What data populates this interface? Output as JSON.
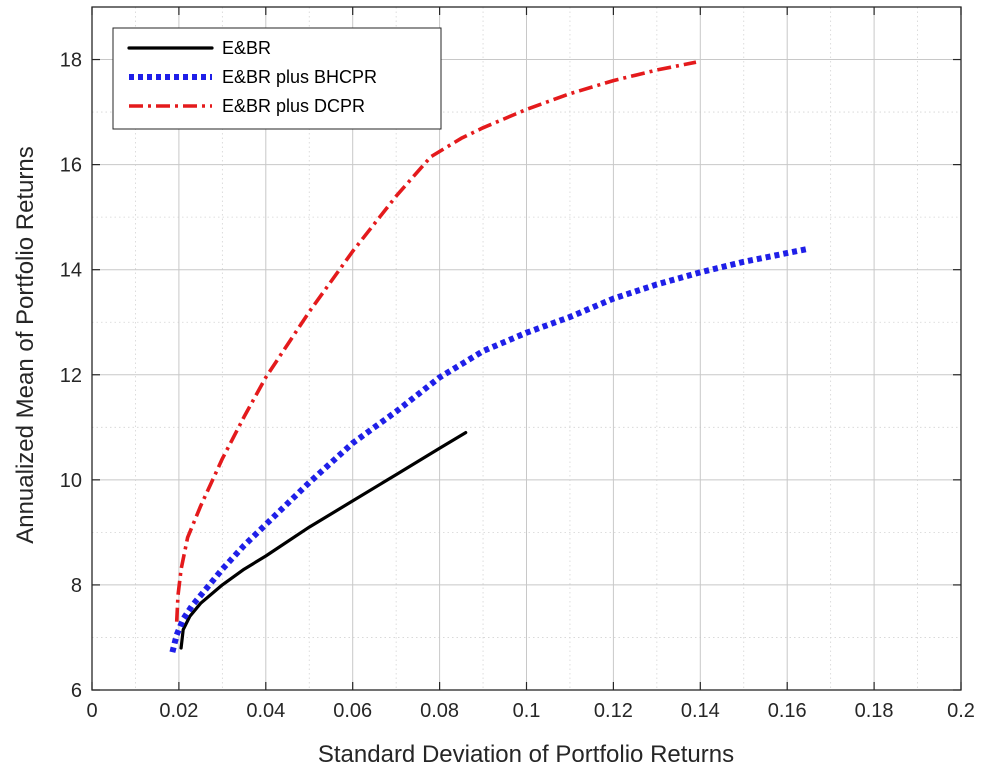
{
  "chart_data": {
    "type": "line",
    "title": "",
    "xlabel": "Standard Deviation of Portfolio Returns",
    "ylabel": "Annualized Mean of Portfolio Returns",
    "xlim": [
      0,
      0.2
    ],
    "ylim": [
      6,
      19
    ],
    "xticks": [
      0,
      0.02,
      0.04,
      0.06,
      0.08,
      0.1,
      0.12,
      0.14,
      0.16,
      0.18,
      0.2
    ],
    "xtick_labels": [
      "0",
      "0.02",
      "0.04",
      "0.06",
      "0.08",
      "0.1",
      "0.12",
      "0.14",
      "0.16",
      "0.18",
      "0.2"
    ],
    "yticks": [
      6,
      8,
      10,
      12,
      14,
      16,
      18
    ],
    "ytick_labels": [
      "6",
      "8",
      "10",
      "12",
      "14",
      "16",
      "18"
    ],
    "grid": true,
    "minor_grid": true,
    "legend_position": "top-left",
    "series": [
      {
        "name": "E&BR",
        "color": "#000000",
        "style": "solid",
        "x": [
          0.0205,
          0.021,
          0.0225,
          0.025,
          0.03,
          0.035,
          0.04,
          0.05,
          0.06,
          0.07,
          0.08,
          0.086
        ],
        "y": [
          6.8,
          7.15,
          7.4,
          7.65,
          8.0,
          8.3,
          8.55,
          9.1,
          9.6,
          10.1,
          10.6,
          10.9
        ]
      },
      {
        "name": "E&BR plus BHCPR",
        "color": "#1f1fe8",
        "style": "dotted",
        "x": [
          0.0185,
          0.0195,
          0.021,
          0.023,
          0.026,
          0.03,
          0.035,
          0.04,
          0.05,
          0.06,
          0.07,
          0.08,
          0.085,
          0.09,
          0.1,
          0.11,
          0.12,
          0.13,
          0.14,
          0.15,
          0.165
        ],
        "y": [
          6.72,
          7.05,
          7.35,
          7.6,
          7.9,
          8.3,
          8.75,
          9.15,
          9.95,
          10.7,
          11.3,
          11.95,
          12.2,
          12.45,
          12.8,
          13.1,
          13.45,
          13.72,
          13.95,
          14.15,
          14.4
        ]
      },
      {
        "name": "E&BR plus DCPR",
        "color": "#e41a1c",
        "style": "dashdot",
        "x": [
          0.0195,
          0.0198,
          0.0205,
          0.022,
          0.025,
          0.03,
          0.035,
          0.04,
          0.05,
          0.06,
          0.07,
          0.078,
          0.085,
          0.09,
          0.1,
          0.11,
          0.12,
          0.13,
          0.139
        ],
        "y": [
          7.3,
          7.8,
          8.3,
          8.9,
          9.5,
          10.4,
          11.2,
          11.95,
          13.2,
          14.35,
          15.4,
          16.15,
          16.5,
          16.7,
          17.05,
          17.35,
          17.6,
          17.8,
          17.95
        ]
      }
    ]
  }
}
